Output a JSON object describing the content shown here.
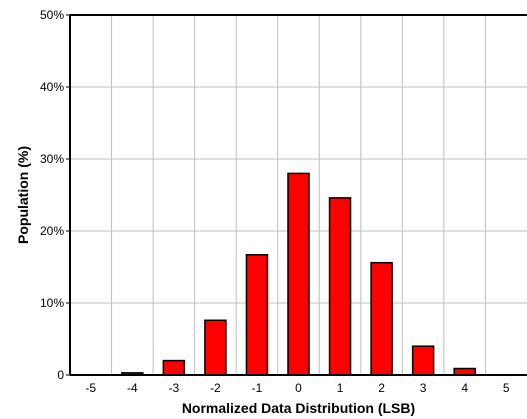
{
  "chart_data": {
    "type": "bar",
    "title": "",
    "xlabel": "Normalized Data Distribution (LSB)",
    "ylabel": "Population (%)",
    "categories": [
      "-5",
      "-4",
      "-3",
      "-2",
      "-1",
      "0",
      "1",
      "2",
      "3",
      "4",
      "5"
    ],
    "values": [
      0,
      0.3,
      2.0,
      7.6,
      16.7,
      28.0,
      24.6,
      15.6,
      4.0,
      0.9,
      0
    ],
    "ylim": [
      0,
      50
    ],
    "yticks": [
      "0",
      "10%",
      "20%",
      "30%",
      "40%",
      "50%"
    ],
    "grid": true,
    "bar_color": "#ff0000",
    "bar_edge_color": "#000000",
    "grid_color": "#c0c0c0"
  }
}
